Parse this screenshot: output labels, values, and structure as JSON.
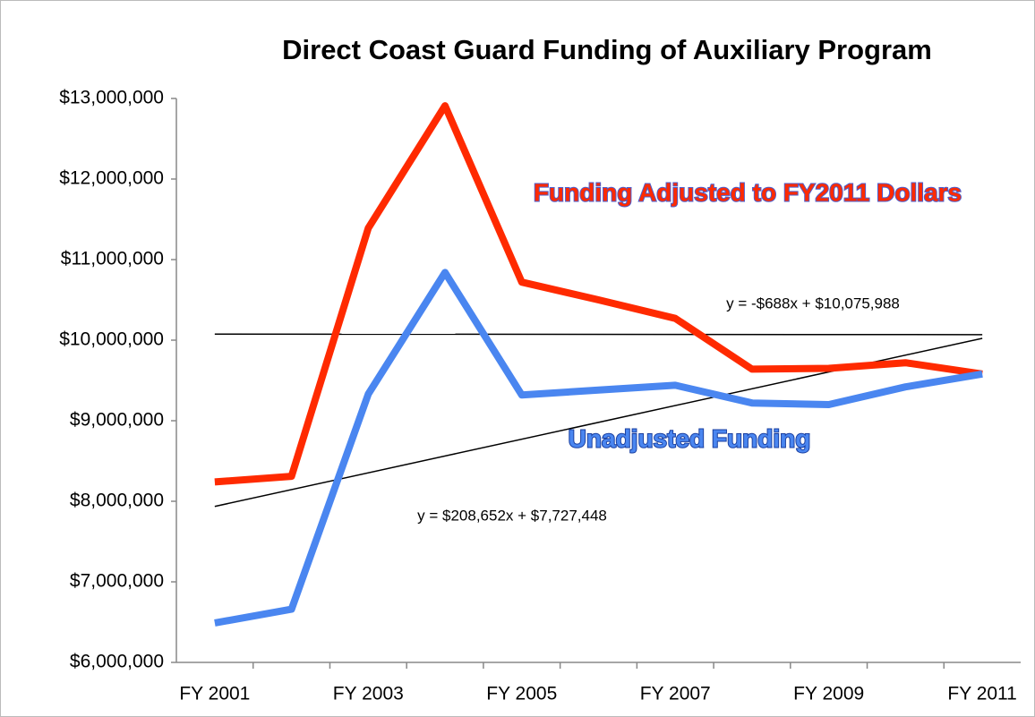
{
  "chart_data": {
    "type": "line",
    "title": "Direct Coast Guard Funding of Auxiliary Program",
    "categories": [
      "FY 2001",
      null,
      "FY 2003",
      null,
      "FY 2005",
      null,
      "FY 2007",
      null,
      "FY 2009",
      null,
      "FY 2011"
    ],
    "series": [
      {
        "name": "Funding Adjusted to FY2011 Dollars",
        "color": "#ff2a00",
        "values": [
          8240000,
          8310000,
          11390000,
          12910000,
          10720000,
          10500000,
          10270000,
          9640000,
          9650000,
          9720000,
          9580000
        ]
      },
      {
        "name": "Unadjusted Funding",
        "color": "#4a86f0",
        "values": [
          6490000,
          6660000,
          9330000,
          10840000,
          9320000,
          9380000,
          9440000,
          9220000,
          9200000,
          9420000,
          9580000
        ]
      }
    ],
    "trendlines": [
      {
        "slope": -688,
        "intercept": 10075988,
        "label": "y = -$688x + $10,075,988"
      },
      {
        "slope": 208652,
        "intercept": 7727448,
        "label": "y = $208,652x + $7,727,448"
      }
    ],
    "ylim": [
      6000000,
      13000000
    ],
    "yticks": [
      {
        "value": 6000000,
        "label": "$6,000,000"
      },
      {
        "value": 7000000,
        "label": "$7,000,000"
      },
      {
        "value": 8000000,
        "label": "$8,000,000"
      },
      {
        "value": 9000000,
        "label": "$9,000,000"
      },
      {
        "value": 10000000,
        "label": "$10,000,000"
      },
      {
        "value": 11000000,
        "label": "$11,000,000"
      },
      {
        "value": 12000000,
        "label": "$12,000,000"
      },
      {
        "value": 13000000,
        "label": "$13,000,000"
      }
    ]
  }
}
